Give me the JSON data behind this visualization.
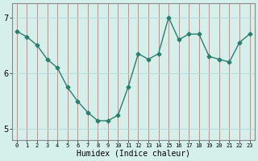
{
  "x": [
    0,
    1,
    2,
    3,
    4,
    5,
    6,
    7,
    8,
    9,
    10,
    11,
    12,
    13,
    14,
    15,
    16,
    17,
    18,
    19,
    20,
    21,
    22,
    23
  ],
  "y": [
    6.75,
    6.65,
    6.5,
    6.25,
    6.1,
    5.75,
    5.5,
    5.3,
    5.15,
    5.15,
    5.25,
    5.75,
    6.35,
    6.25,
    6.35,
    7.0,
    6.6,
    6.7,
    6.7,
    6.3,
    6.25,
    6.2,
    6.55,
    6.7
  ],
  "xlabel": "Humidex (Indice chaleur)",
  "ylim": [
    4.8,
    7.25
  ],
  "xlim": [
    -0.5,
    23.5
  ],
  "yticks": [
    5,
    6,
    7
  ],
  "xtick_labels": [
    "0",
    "1",
    "2",
    "3",
    "4",
    "5",
    "6",
    "7",
    "8",
    "9",
    "10",
    "11",
    "12",
    "13",
    "14",
    "15",
    "16",
    "17",
    "18",
    "19",
    "20",
    "21",
    "22",
    "23"
  ],
  "line_color": "#2d7d6b",
  "marker": "D",
  "marker_size": 2.5,
  "bg_color": "#d5f0eb",
  "vgrid_color": "#e08080",
  "hgrid_color": "#b8ddd8",
  "line_width": 1.0,
  "spine_color": "#888888"
}
